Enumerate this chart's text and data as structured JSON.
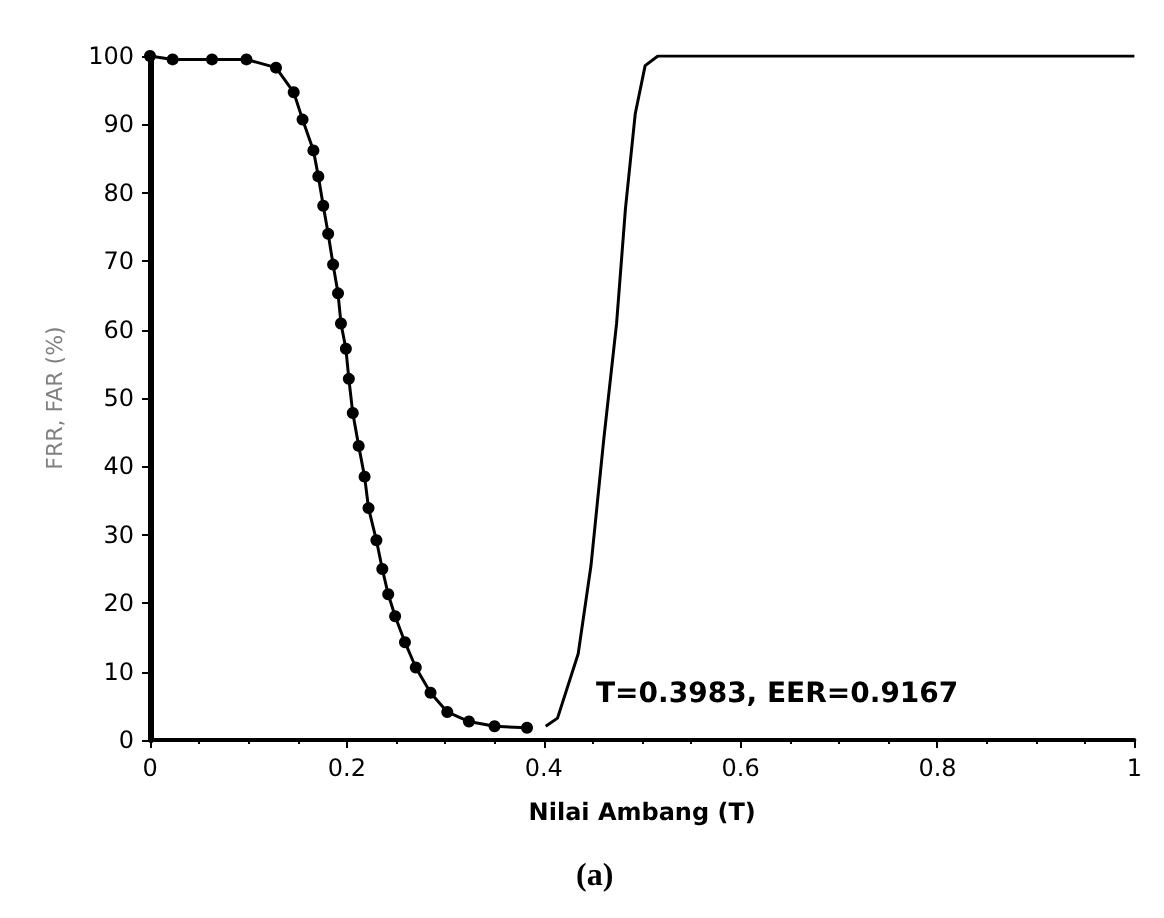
{
  "chart_data": {
    "type": "line",
    "xlabel": "Nilai Ambang (T)",
    "ylabel": "FRR, FAR (%)",
    "xlim": [
      0,
      1
    ],
    "xticks": [
      0,
      0.2,
      0.4,
      0.6,
      0.8,
      1
    ],
    "ylim": [
      0,
      100
    ],
    "yticks": [
      0,
      10,
      20,
      30,
      40,
      50,
      60,
      70,
      80,
      90,
      100
    ],
    "grid": false,
    "annotations": [
      "T=0.3983, EER=0.9167",
      "(a)"
    ],
    "series": [
      {
        "color": "#000000",
        "marker": "circle",
        "line_style": "solid",
        "x": [
          0,
          0.023,
          0.063,
          0.098,
          0.128,
          0.146,
          0.155,
          0.166,
          0.171,
          0.176,
          0.181,
          0.186,
          0.191,
          0.194,
          0.199,
          0.202,
          0.206,
          0.212,
          0.218,
          0.222,
          0.23,
          0.236,
          0.242,
          0.249,
          0.259,
          0.27,
          0.285,
          0.302,
          0.324,
          0.35,
          0.383
        ],
        "values": [
          100,
          99.5,
          99.5,
          99.5,
          98.3,
          94.7,
          90.7,
          86.2,
          82.4,
          78.1,
          74,
          69.5,
          65.3,
          60.9,
          57.2,
          52.8,
          47.8,
          43,
          38.5,
          33.9,
          29.2,
          25,
          21.3,
          18.1,
          14.3,
          10.6,
          6.9,
          4.1,
          2.7,
          2,
          1.8
        ]
      },
      {
        "color": "#000000",
        "marker": "none",
        "line_style": "solid",
        "x": [
          0.402,
          0.414,
          0.435,
          0.448,
          0.461,
          0.474,
          0.483,
          0.493,
          0.503,
          0.516,
          1
        ],
        "values": [
          2,
          3.2,
          12.6,
          25.5,
          44,
          60.9,
          77.7,
          91.6,
          98.6,
          100,
          100
        ]
      }
    ]
  }
}
